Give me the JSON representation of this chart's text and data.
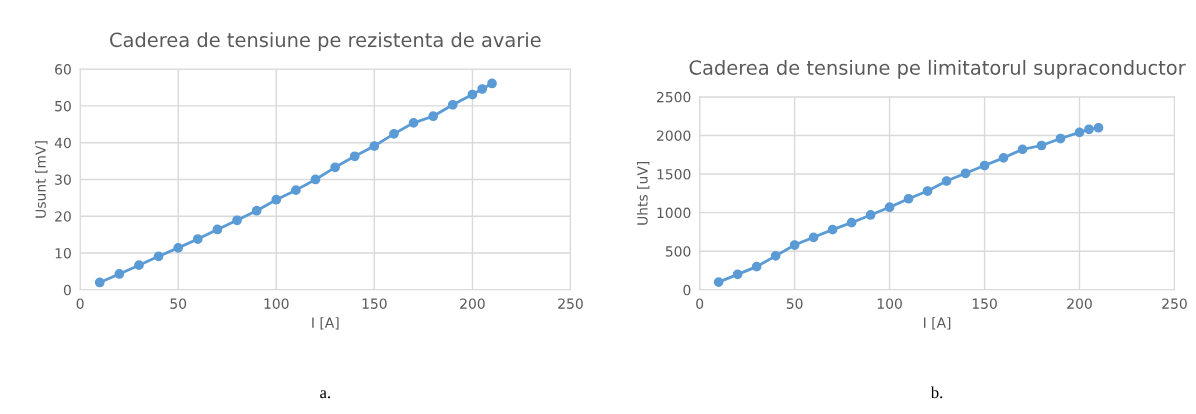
{
  "chart_data": [
    {
      "type": "line",
      "title": "Caderea de tensiune pe rezistenta de avarie",
      "xlabel": "I [A]",
      "ylabel": "Usunt [mV]",
      "annotations": [
        "a."
      ],
      "x": [
        10,
        20,
        30,
        40,
        50,
        60,
        70,
        80,
        90,
        100,
        110,
        120,
        130,
        140,
        150,
        160,
        170,
        180,
        190,
        200,
        205,
        210
      ],
      "series": [
        {
          "color": "#5b9bd5",
          "values": [
            2,
            4.3,
            6.7,
            9.1,
            11.4,
            13.8,
            16.4,
            18.9,
            21.5,
            24.5,
            27.1,
            30,
            33.3,
            36.3,
            39.1,
            42.4,
            45.4,
            47.2,
            50.3,
            53.1,
            54.6,
            56.1
          ]
        }
      ],
      "xlim": [
        0,
        250
      ],
      "xticks": [
        0,
        50,
        100,
        150,
        200,
        250
      ],
      "ylim": [
        0,
        60
      ],
      "yticks": [
        0,
        10,
        20,
        30,
        40,
        50,
        60
      ],
      "grid": true,
      "marker": "circle",
      "line_style": "solid"
    },
    {
      "type": "line",
      "title": "Caderea de tensiune pe limitatorul supraconductor",
      "xlabel": "I [A]",
      "ylabel": "Uhts [uV]",
      "annotations": [
        "b."
      ],
      "x": [
        10,
        20,
        30,
        40,
        50,
        60,
        70,
        80,
        90,
        100,
        110,
        120,
        130,
        140,
        150,
        160,
        170,
        180,
        190,
        200,
        205,
        210
      ],
      "series": [
        {
          "color": "#5b9bd5",
          "values": [
            100,
            200,
            300,
            440,
            580,
            680,
            780,
            870,
            970,
            1070,
            1180,
            1280,
            1410,
            1510,
            1610,
            1710,
            1820,
            1870,
            1960,
            2040,
            2080,
            2100
          ]
        }
      ],
      "xlim": [
        0,
        250
      ],
      "xticks": [
        0,
        50,
        100,
        150,
        200,
        250
      ],
      "ylim": [
        0,
        2500
      ],
      "yticks": [
        0,
        500,
        1000,
        1500,
        2000,
        2500
      ],
      "grid": true,
      "marker": "circle",
      "line_style": "solid"
    }
  ]
}
